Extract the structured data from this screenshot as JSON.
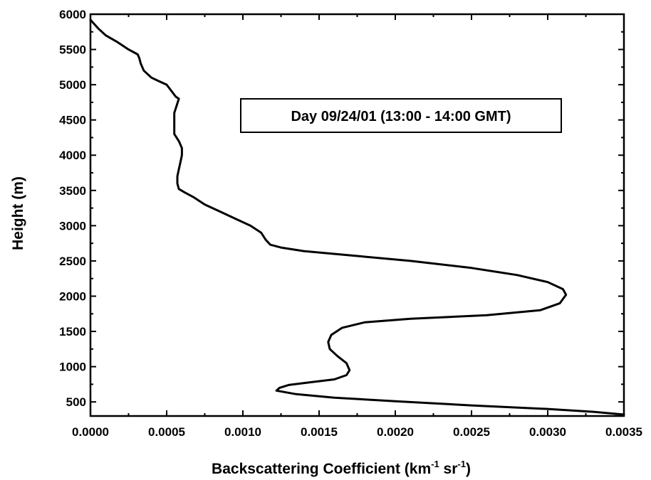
{
  "chart_data": {
    "type": "line",
    "title": "",
    "legend_label": "Day 09/24/01 (13:00 - 14:00 GMT)",
    "xlabel": "Backscattering Coefficient (km",
    "xlabel_sup1": "-1",
    "xlabel_mid": " sr",
    "xlabel_sup2": "-1",
    "xlabel_end": ")",
    "ylabel": "Height (m)",
    "xlim": [
      0.0,
      0.0035
    ],
    "ylim": [
      300,
      6000
    ],
    "x_ticks": [
      "0.0000",
      "0.0005",
      "0.0010",
      "0.0015",
      "0.0020",
      "0.0025",
      "0.0030",
      "0.0035"
    ],
    "y_ticks": [
      "500",
      "1000",
      "1500",
      "2000",
      "2500",
      "3000",
      "3500",
      "4000",
      "4500",
      "5000",
      "5500",
      "6000"
    ],
    "grid": false,
    "legend_position": "top-right",
    "series": [
      {
        "x": [
          0.0035,
          0.0033,
          0.003,
          0.0025,
          0.002,
          0.0016,
          0.00135,
          0.00122,
          0.00124,
          0.0013,
          0.00145,
          0.0016,
          0.00168,
          0.0017,
          0.00168,
          0.00162,
          0.00157,
          0.00156,
          0.00158,
          0.00165,
          0.0018,
          0.0021,
          0.0026,
          0.00295,
          0.00308,
          0.00312,
          0.0031,
          0.003,
          0.0028,
          0.0025,
          0.0021,
          0.0017,
          0.0014,
          0.00125,
          0.00118,
          0.00115,
          0.00112,
          0.00105,
          0.00095,
          0.00085,
          0.00075,
          0.00068,
          0.00062,
          0.00058,
          0.00057,
          0.00057,
          0.00058,
          0.00059,
          0.0006,
          0.0006,
          0.00058,
          0.00055,
          0.00055,
          0.00058,
          0.00056,
          0.0005,
          0.00045,
          0.0004,
          0.00035,
          0.00033,
          0.00032,
          0.00031,
          0.00025,
          0.00018,
          0.0001,
          5e-05,
          0.0
        ],
        "y": [
          320,
          360,
          400,
          450,
          510,
          560,
          610,
          660,
          700,
          740,
          780,
          820,
          880,
          950,
          1050,
          1150,
          1250,
          1350,
          1450,
          1550,
          1630,
          1680,
          1730,
          1800,
          1900,
          2020,
          2100,
          2200,
          2300,
          2400,
          2500,
          2580,
          2640,
          2690,
          2730,
          2800,
          2900,
          3000,
          3100,
          3200,
          3300,
          3400,
          3470,
          3520,
          3600,
          3700,
          3800,
          3900,
          4000,
          4100,
          4200,
          4300,
          4600,
          4800,
          4830,
          5000,
          5050,
          5100,
          5200,
          5300,
          5380,
          5430,
          5500,
          5600,
          5700,
          5800,
          5920
        ]
      }
    ]
  }
}
